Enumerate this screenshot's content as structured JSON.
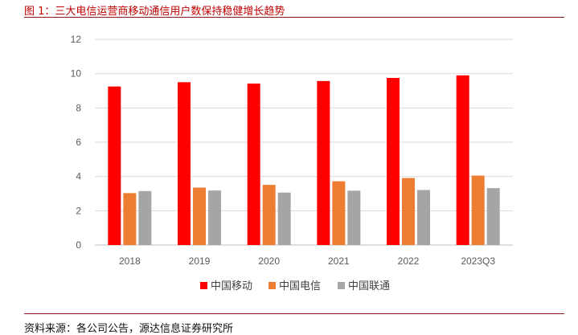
{
  "figure_title": "图 1：三大电信运营商移动通信用户数保持稳健增长趋势",
  "source": "资料来源：各公司公告，源达信息证券研究所",
  "chart_data": {
    "type": "bar",
    "categories": [
      "2018",
      "2019",
      "2020",
      "2021",
      "2022",
      "2023Q3"
    ],
    "series": [
      {
        "name": "中国移动",
        "color": "#ff0000",
        "values": [
          9.25,
          9.5,
          9.42,
          9.57,
          9.75,
          9.9
        ]
      },
      {
        "name": "中国电信",
        "color": "#ed7d31",
        "values": [
          3.03,
          3.35,
          3.51,
          3.72,
          3.91,
          4.05
        ]
      },
      {
        "name": "中国联通",
        "color": "#a5a5a5",
        "values": [
          3.15,
          3.18,
          3.06,
          3.17,
          3.21,
          3.32
        ]
      }
    ],
    "ylim": [
      0,
      12
    ],
    "yticks": [
      0,
      2,
      4,
      6,
      8,
      10,
      12
    ],
    "grid": true,
    "legend": "bottom"
  }
}
